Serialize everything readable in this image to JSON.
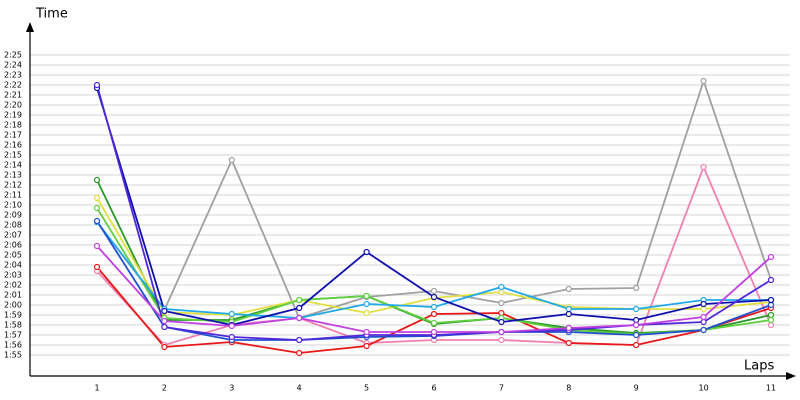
{
  "chart_data": {
    "type": "line",
    "y_label": "Time",
    "x_label": "Laps",
    "categories": [
      "1",
      "2",
      "3",
      "4",
      "5",
      "6",
      "7",
      "8",
      "9",
      "10",
      "11"
    ],
    "ylim": [
      113,
      148
    ],
    "yticks": [
      {
        "value": 115,
        "label": "1:55"
      },
      {
        "value": 116,
        "label": "1:56"
      },
      {
        "value": 117,
        "label": "1:57"
      },
      {
        "value": 118,
        "label": "1:58"
      },
      {
        "value": 119,
        "label": "1:59"
      },
      {
        "value": 120,
        "label": "2:00"
      },
      {
        "value": 121,
        "label": "2:01"
      },
      {
        "value": 122,
        "label": "2:02"
      },
      {
        "value": 123,
        "label": "2:03"
      },
      {
        "value": 124,
        "label": "2:04"
      },
      {
        "value": 125,
        "label": "2:05"
      },
      {
        "value": 126,
        "label": "2:06"
      },
      {
        "value": 127,
        "label": "2:07"
      },
      {
        "value": 128,
        "label": "2:08"
      },
      {
        "value": 129,
        "label": "2:09"
      },
      {
        "value": 130,
        "label": "2:10"
      },
      {
        "value": 131,
        "label": "2:11"
      },
      {
        "value": 132,
        "label": "2:12"
      },
      {
        "value": 133,
        "label": "2:13"
      },
      {
        "value": 134,
        "label": "2:14"
      },
      {
        "value": 135,
        "label": "2:15"
      },
      {
        "value": 136,
        "label": "2:16"
      },
      {
        "value": 137,
        "label": "2:17"
      },
      {
        "value": 138,
        "label": "2:18"
      },
      {
        "value": 139,
        "label": "2:19"
      },
      {
        "value": 140,
        "label": "2:20"
      },
      {
        "value": 141,
        "label": "2:21"
      },
      {
        "value": 142,
        "label": "2:22"
      },
      {
        "value": 143,
        "label": "2:23"
      },
      {
        "value": 144,
        "label": "2:24"
      },
      {
        "value": 145,
        "label": "2:25"
      }
    ],
    "grid": true,
    "series": [
      {
        "color": "#a0a0a0",
        "values": [
          128.3,
          119.5,
          134.5,
          118.7,
          120.8,
          121.4,
          120.2,
          121.6,
          121.7,
          142.4,
          122.5
        ]
      },
      {
        "color": "#f080b0",
        "values": [
          123.4,
          116,
          118,
          118.7,
          116.2,
          116.5,
          116.5,
          116.2,
          116,
          133.8,
          118
        ]
      },
      {
        "color": "#e81818",
        "values": [
          123.8,
          115.8,
          116.3,
          115.2,
          115.9,
          119.1,
          119.2,
          116.2,
          116,
          117.5,
          119.7
        ]
      },
      {
        "color": "#289828",
        "values": [
          132.5,
          118.5,
          118.5,
          120.5,
          120.9,
          118.1,
          118.7,
          117.7,
          117.2,
          117.5,
          119
        ]
      },
      {
        "color": "#e0e040",
        "values": [
          130.7,
          119.3,
          119,
          120.5,
          119.2,
          120.7,
          121.3,
          119.8,
          119.6,
          119.6,
          120.3
        ]
      },
      {
        "color": "#60d040",
        "values": [
          129.7,
          118.7,
          118.3,
          120.5,
          120.9,
          118.2,
          118.7,
          117.5,
          117.1,
          117.5,
          118.5
        ]
      },
      {
        "color": "#20a8e8",
        "values": [
          128.3,
          119.6,
          119.1,
          118.7,
          120.1,
          119.8,
          121.8,
          119.6,
          119.6,
          120.5,
          120.5
        ]
      },
      {
        "color": "#2050d0",
        "values": [
          128.4,
          117.8,
          116.5,
          116.5,
          116.8,
          116.9,
          117.3,
          117.3,
          117,
          117.5,
          120
        ]
      },
      {
        "color": "#1010b0",
        "values": [
          141.7,
          119.4,
          118,
          119.7,
          125.3,
          120.8,
          118.3,
          119.1,
          118.5,
          120.1,
          120.5
        ]
      },
      {
        "color": "#5028d8",
        "values": [
          142,
          117.8,
          116.8,
          116.5,
          117,
          117,
          117.3,
          117.5,
          118,
          118.3,
          122.5
        ]
      },
      {
        "color": "#c040e0",
        "values": [
          125.9,
          118.4,
          117.9,
          118.7,
          117.3,
          117.3,
          117.3,
          117.7,
          118,
          118.8,
          124.8
        ]
      }
    ]
  }
}
